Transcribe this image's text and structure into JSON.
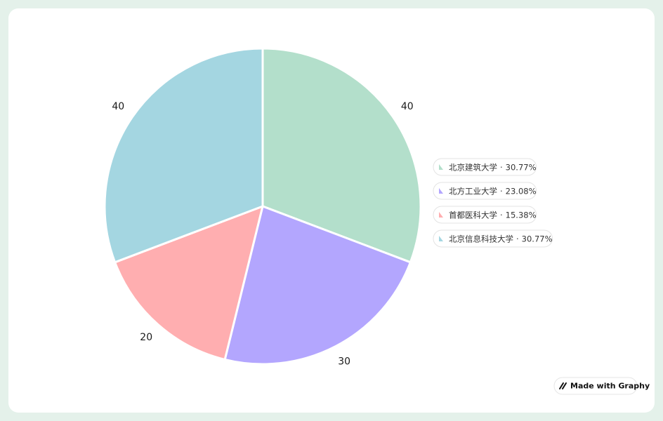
{
  "chart_data": {
    "type": "pie",
    "categories": [
      "北京建筑大学",
      "北方工业大学",
      "首都医科大学",
      "北京信息科技大学"
    ],
    "values": [
      40,
      30,
      20,
      40
    ],
    "colors": [
      "#b3dfcb",
      "#b3a6fe",
      "#ffaeb0",
      "#a4d6e1"
    ],
    "legend_separator": "·",
    "percent_labels": [
      "30.77%",
      "23.08%",
      "15.38%",
      "30.77%"
    ]
  },
  "badge": "Made with Graphy"
}
